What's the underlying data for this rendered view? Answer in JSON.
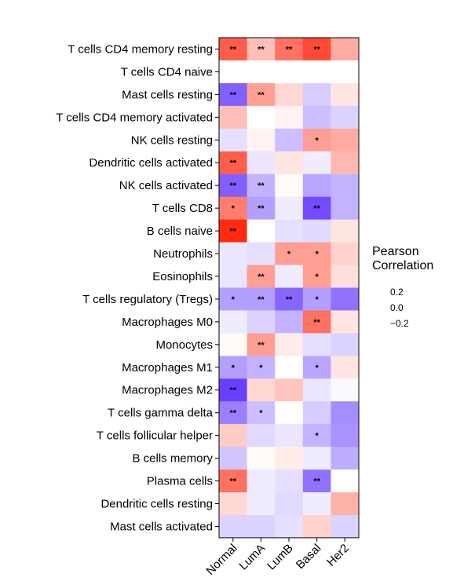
{
  "chart_data": {
    "type": "heatmap",
    "rows": [
      "T cells CD4 memory resting",
      "T cells CD4 naive",
      "Mast cells resting",
      "T cells CD4 memory activated",
      "NK cells resting",
      "Dendritic cells activated",
      "NK cells activated",
      "T cells CD8",
      "B cells naive",
      "Neutrophils",
      "Eosinophils",
      "T cells regulatory (Tregs)",
      "Macrophages M0",
      "Monocytes",
      "Macrophages M1",
      "Macrophages M2",
      "T cells gamma delta",
      "T cells follicular helper",
      "B cells memory",
      "Plasma cells",
      "Dendritic cells resting",
      "Mast cells activated"
    ],
    "columns": [
      "Normal",
      "LumA",
      "LumB",
      "Basal",
      "Her2"
    ],
    "values": [
      [
        0.25,
        0.1,
        0.22,
        0.28,
        0.13
      ],
      [
        0.0,
        0.0,
        0.0,
        0.0,
        0.0
      ],
      [
        -0.25,
        0.15,
        0.06,
        -0.08,
        0.04
      ],
      [
        0.1,
        0.0,
        0.02,
        -0.1,
        -0.07
      ],
      [
        -0.05,
        0.02,
        -0.1,
        0.15,
        0.13
      ],
      [
        0.25,
        -0.04,
        0.04,
        -0.03,
        0.11
      ],
      [
        -0.25,
        -0.12,
        0.01,
        -0.14,
        -0.12
      ],
      [
        0.2,
        -0.15,
        -0.03,
        -0.28,
        -0.12
      ],
      [
        0.33,
        0.0,
        -0.05,
        -0.06,
        0.04
      ],
      [
        -0.04,
        -0.05,
        0.15,
        0.15,
        0.07
      ],
      [
        -0.04,
        0.15,
        -0.03,
        0.15,
        0.05
      ],
      [
        -0.15,
        -0.15,
        -0.24,
        -0.15,
        -0.22
      ],
      [
        -0.03,
        -0.07,
        -0.12,
        0.22,
        0.04
      ],
      [
        0.01,
        0.15,
        0.03,
        -0.05,
        -0.07
      ],
      [
        -0.15,
        -0.12,
        0.0,
        -0.14,
        0.04
      ],
      [
        -0.3,
        0.06,
        0.09,
        -0.04,
        -0.01
      ],
      [
        -0.2,
        -0.1,
        0.0,
        -0.08,
        -0.18
      ],
      [
        0.08,
        -0.06,
        -0.04,
        -0.12,
        -0.17
      ],
      [
        -0.09,
        0.01,
        0.03,
        -0.03,
        -0.13
      ],
      [
        0.22,
        -0.03,
        -0.05,
        -0.22,
        0.0
      ],
      [
        0.06,
        -0.03,
        -0.06,
        -0.03,
        0.12
      ],
      [
        -0.07,
        -0.07,
        -0.05,
        0.07,
        -0.07
      ]
    ],
    "significance": [
      [
        "**",
        "**",
        "**",
        "**",
        ""
      ],
      [
        "",
        "",
        "",
        "",
        ""
      ],
      [
        "**",
        "**",
        "",
        "",
        ""
      ],
      [
        "",
        "",
        "",
        "",
        ""
      ],
      [
        "",
        "",
        "",
        "*",
        ""
      ],
      [
        "**",
        "",
        "",
        "",
        ""
      ],
      [
        "**",
        "**",
        "",
        "",
        ""
      ],
      [
        "*",
        "**",
        "",
        "**",
        ""
      ],
      [
        "**",
        "",
        "",
        "",
        ""
      ],
      [
        "",
        "",
        "*",
        "*",
        ""
      ],
      [
        "",
        "**",
        "",
        "*",
        ""
      ],
      [
        "*",
        "**",
        "**",
        "*",
        ""
      ],
      [
        "",
        "",
        "",
        "**",
        ""
      ],
      [
        "",
        "**",
        "",
        "",
        ""
      ],
      [
        "*",
        "*",
        "",
        "*",
        ""
      ],
      [
        "**",
        "",
        "",
        "",
        ""
      ],
      [
        "**",
        "*",
        "",
        "",
        ""
      ],
      [
        "",
        "",
        "",
        "*",
        ""
      ],
      [
        "",
        "",
        "",
        "",
        ""
      ],
      [
        "**",
        "",
        "",
        "**",
        ""
      ],
      [
        "",
        "",
        "",
        "",
        ""
      ],
      [
        "",
        "",
        "",
        "",
        ""
      ]
    ],
    "color_scale": {
      "low": "#5a2cff",
      "mid": "#ffffff",
      "high": "#ff2a10",
      "min": -0.33,
      "max": 0.33
    },
    "legend": {
      "title_line1": "Pearson",
      "title_line2": "Correlation",
      "labels": [
        "0.2",
        "0.0",
        "−0.2"
      ],
      "position": "right"
    }
  }
}
